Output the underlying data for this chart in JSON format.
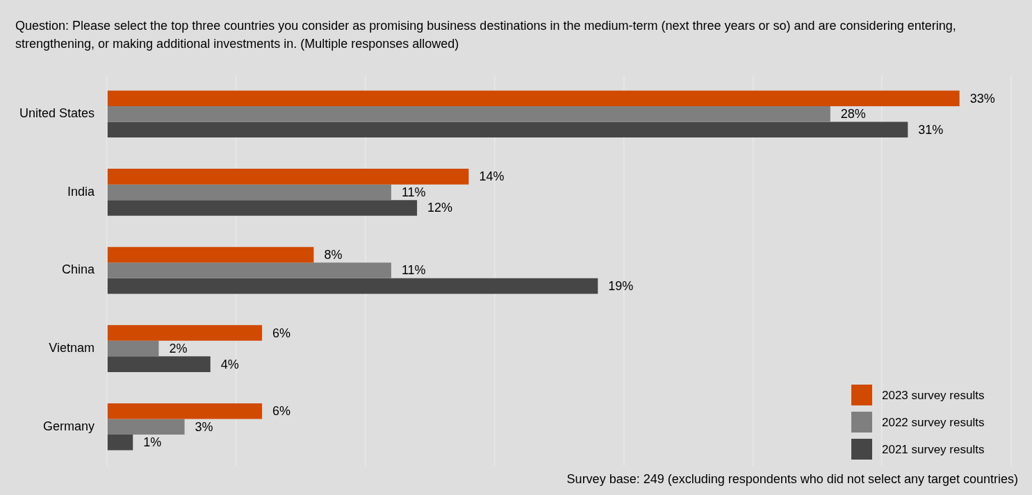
{
  "chart_data": {
    "type": "bar",
    "orientation": "horizontal",
    "title": "Question: Please select the top three countries you consider as promising business destinations in the medium-term (next three years or so) and are considering entering, strengthening, or making additional investments in. (Multiple responses allowed)",
    "categories": [
      "United States",
      "India",
      "China",
      "Vietnam",
      "Germany"
    ],
    "series": [
      {
        "name": "2023 survey results",
        "color": "#d04a02",
        "values": [
          33,
          14,
          8,
          6,
          6
        ],
        "value_labels": [
          "33%",
          "14%",
          "8%",
          "6%",
          "6%"
        ]
      },
      {
        "name": "2022 survey results",
        "color": "#7f7f7f",
        "values": [
          28,
          11,
          11,
          2,
          3
        ],
        "value_labels": [
          "28%",
          "11%",
          "11%",
          "2%",
          "3%"
        ]
      },
      {
        "name": "2021 survey results",
        "color": "#464646",
        "values": [
          31,
          12,
          19,
          4,
          1
        ],
        "value_labels": [
          "31%",
          "12%",
          "19%",
          "4%",
          "1%"
        ]
      }
    ],
    "xlim": [
      0,
      35
    ],
    "xticks": [
      {
        "value": 0,
        "label": null
      },
      {
        "value": 5,
        "label": null
      },
      {
        "value": 10,
        "label": null
      },
      {
        "value": 15,
        "label": null
      },
      {
        "value": 20,
        "label": null
      },
      {
        "value": 25,
        "label": null
      },
      {
        "value": 30,
        "label": null
      },
      {
        "value": 35,
        "label": null
      }
    ],
    "tick_labels": "y",
    "grid": "x",
    "legend": "bottom right",
    "annotations": [
      "Survey base: 249 (excluding respondents who did not select any target countries)"
    ]
  }
}
